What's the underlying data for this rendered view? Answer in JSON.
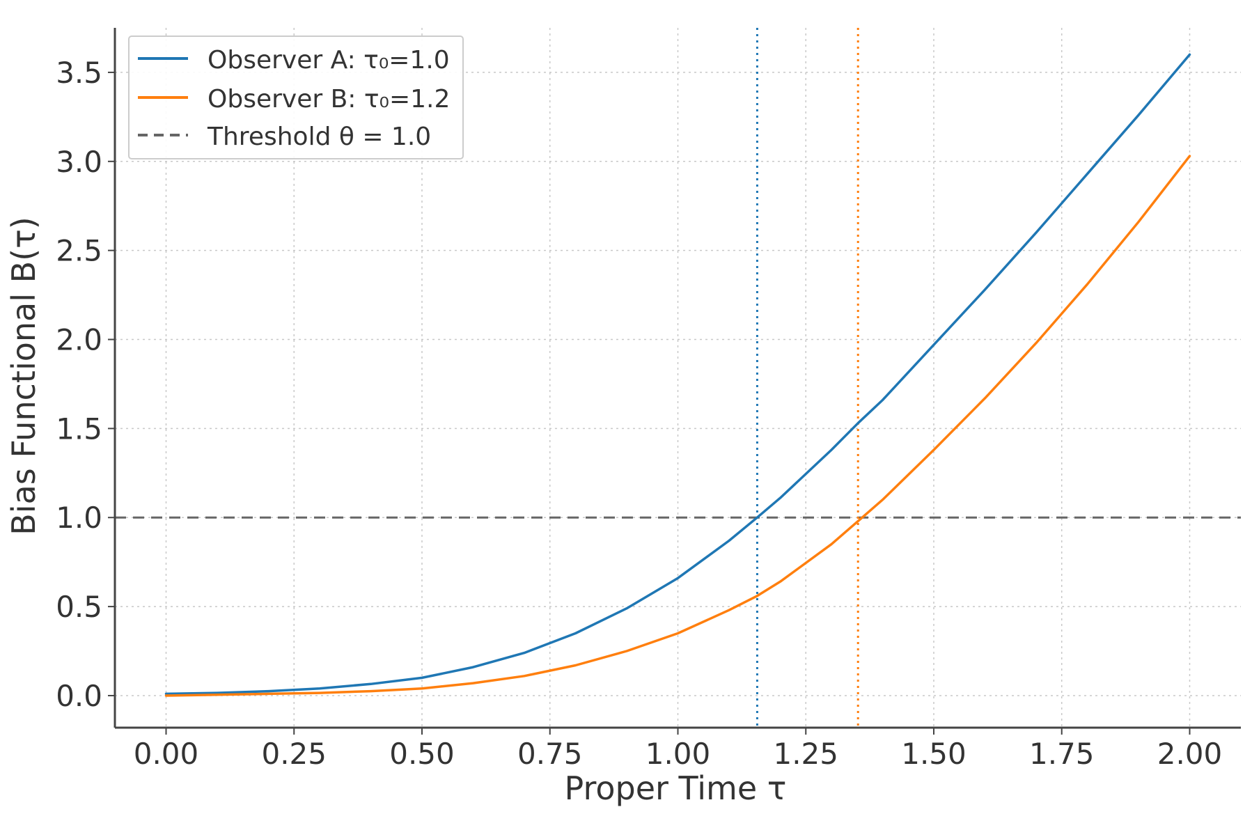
{
  "chart_data": {
    "type": "line",
    "title": "",
    "xlabel": "Proper Time τ",
    "ylabel": "Bias Functional B(τ)",
    "xlim": [
      -0.1,
      2.1
    ],
    "ylim": [
      -0.18,
      3.75
    ],
    "xticks": [
      0.0,
      0.25,
      0.5,
      0.75,
      1.0,
      1.25,
      1.5,
      1.75,
      2.0
    ],
    "xtick_labels": [
      "0.00",
      "0.25",
      "0.50",
      "0.75",
      "1.00",
      "1.25",
      "1.50",
      "1.75",
      "2.00"
    ],
    "yticks": [
      0.0,
      0.5,
      1.0,
      1.5,
      2.0,
      2.5,
      3.0,
      3.5
    ],
    "ytick_labels": [
      "0.0",
      "0.5",
      "1.0",
      "1.5",
      "2.0",
      "2.5",
      "3.0",
      "3.5"
    ],
    "grid": true,
    "legend_position": "top-left",
    "x": [
      0.0,
      0.1,
      0.2,
      0.3,
      0.4,
      0.5,
      0.6,
      0.7,
      0.8,
      0.9,
      1.0,
      1.1,
      1.155,
      1.2,
      1.3,
      1.352,
      1.4,
      1.5,
      1.6,
      1.7,
      1.8,
      1.9,
      2.0
    ],
    "series": [
      {
        "name": "Observer A: τ₀=1.0",
        "color": "#1f77b4",
        "style": "solid",
        "values": [
          0.01,
          0.015,
          0.025,
          0.04,
          0.065,
          0.1,
          0.16,
          0.24,
          0.35,
          0.49,
          0.66,
          0.87,
          1.0,
          1.11,
          1.38,
          1.53,
          1.66,
          1.97,
          2.28,
          2.6,
          2.93,
          3.26,
          3.6
        ]
      },
      {
        "name": "Observer B: τ₀=1.2",
        "color": "#ff7f0e",
        "style": "solid",
        "values": [
          0.0,
          0.005,
          0.01,
          0.015,
          0.025,
          0.04,
          0.07,
          0.11,
          0.17,
          0.25,
          0.35,
          0.48,
          0.56,
          0.64,
          0.85,
          0.98,
          1.1,
          1.38,
          1.67,
          1.98,
          2.31,
          2.66,
          3.03
        ]
      }
    ],
    "threshold": {
      "name": "Threshold θ = 1.0",
      "value": 1.0,
      "color": "#666666",
      "style": "dashed"
    },
    "crossings": [
      {
        "x": 1.155,
        "color": "#1f77b4",
        "style": "dotted"
      },
      {
        "x": 1.352,
        "color": "#ff7f0e",
        "style": "dotted"
      }
    ]
  }
}
